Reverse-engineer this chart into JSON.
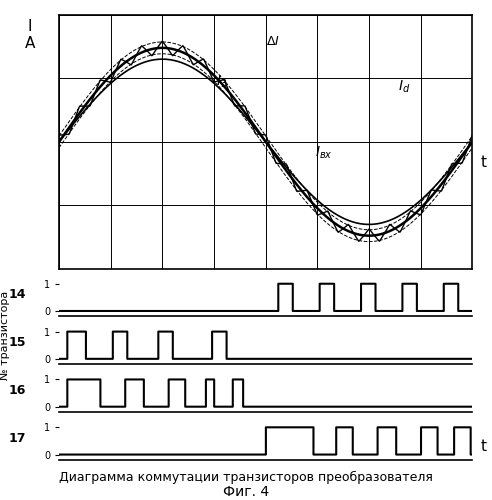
{
  "title_fig": "Фиг. 4",
  "caption": "Диаграмма коммутации транзисторов преобразователя",
  "top_ylabel": "I\nA",
  "bottom_ylabel": "№ транзистора",
  "xlabel": "t",
  "bg_color": "#ffffff",
  "grid_color": "#000000",
  "line_color": "#000000",
  "num_periods": 10,
  "transistor_labels": [
    "14",
    "15",
    "16",
    "17"
  ],
  "transistor_tick_labels": [
    "1\n0",
    "1\n0",
    "1\n0",
    "1\n0"
  ]
}
